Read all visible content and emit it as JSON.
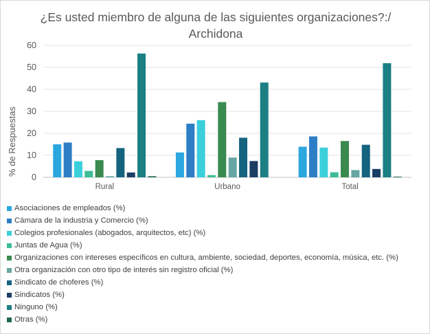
{
  "chart_data": {
    "type": "bar",
    "title_line1": "¿Es usted miembro de alguna de las siguientes organizaciones?:/",
    "title_line2": "Archidona",
    "xlabel": "",
    "ylabel": "% de Respuestas",
    "ylim": [
      0,
      60
    ],
    "yticks": [
      0,
      10,
      20,
      30,
      40,
      50,
      60
    ],
    "grid": true,
    "legend_placement": "bottom",
    "categories": [
      "Rural",
      "Urbano",
      "Total"
    ],
    "series": [
      {
        "name": "Asociaciones de empleados (%)",
        "color": "#2aa7df",
        "values": [
          15.0,
          11.3,
          13.9
        ]
      },
      {
        "name": "Cámara de la industria y Comercio (%)",
        "color": "#2e7ec6",
        "values": [
          15.8,
          24.4,
          18.6
        ]
      },
      {
        "name": "Colegios profesionales (abogados, arquitectos, etc) (%)",
        "color": "#3bcfdc",
        "values": [
          7.3,
          26.0,
          13.5
        ]
      },
      {
        "name": "Juntas de Agua (%)",
        "color": "#3cbd98",
        "values": [
          2.9,
          1.0,
          2.3
        ]
      },
      {
        "name": "Organizaciones con intereses específicos en cultura, ambiente, sociedad, deportes, economía, música, etc. (%)",
        "color": "#3a8a50",
        "values": [
          7.8,
          34.2,
          16.5
        ]
      },
      {
        "name": "Otra organización con otro tipo de interés sin registro oficial (%)",
        "color": "#66a6a3",
        "values": [
          0.5,
          9.0,
          3.3
        ]
      },
      {
        "name": "Sindicato de choferes (%)",
        "color": "#14637f",
        "values": [
          13.3,
          18.0,
          14.8
        ]
      },
      {
        "name": "Sindicatos (%)",
        "color": "#1c3d64",
        "values": [
          2.2,
          7.4,
          3.8
        ]
      },
      {
        "name": "Ninguno (%)",
        "color": "#1b7f84",
        "values": [
          56.3,
          43.1,
          51.9
        ]
      },
      {
        "name": "Otras (%)",
        "color": "#1d6650",
        "values": [
          0.5,
          0.0,
          0.3
        ]
      }
    ]
  }
}
